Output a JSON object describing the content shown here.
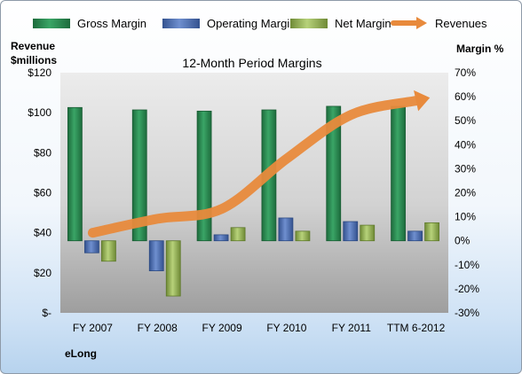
{
  "chart_data": {
    "type": "bar",
    "title": "12-Month Period Margins",
    "company": "eLong",
    "categories": [
      "FY 2007",
      "FY 2008",
      "FY 2009",
      "FY 2010",
      "FY 2011",
      "TTM 6-2012"
    ],
    "left_axis": {
      "label_line1": "Revenue",
      "label_line2": "$millions",
      "ylim": [
        0,
        120
      ],
      "ticks": [
        "$-",
        "$20",
        "$40",
        "$60",
        "$80",
        "$100",
        "$120"
      ],
      "tick_values": [
        0,
        20,
        40,
        60,
        80,
        100,
        120
      ]
    },
    "right_axis": {
      "label": "Margin %",
      "ylim": [
        -30,
        70
      ],
      "ticks": [
        "-30%",
        "-20%",
        "-10%",
        "0%",
        "10%",
        "20%",
        "30%",
        "40%",
        "50%",
        "60%",
        "70%"
      ],
      "tick_values": [
        -30,
        -20,
        -10,
        0,
        10,
        20,
        30,
        40,
        50,
        60,
        70
      ]
    },
    "series": [
      {
        "name": "Gross Margin",
        "type": "bar",
        "axis": "right",
        "color": "#2e8b57",
        "values": [
          55.5,
          54.5,
          54,
          54.5,
          56,
          56
        ]
      },
      {
        "name": "Operating Margin",
        "type": "bar",
        "axis": "right",
        "color": "#4f6fb0",
        "values": [
          -5,
          -12.5,
          2.5,
          9.5,
          8,
          4
        ]
      },
      {
        "name": "Net Margin",
        "type": "bar",
        "axis": "right",
        "color": "#9bbb59",
        "values": [
          -8.5,
          -23,
          5.5,
          4,
          6.5,
          7.5
        ]
      },
      {
        "name": "Revenues",
        "type": "line",
        "axis": "left",
        "color": "#e88a3c",
        "values": [
          40,
          47,
          52,
          77,
          99,
          106
        ]
      }
    ],
    "legend_position": "top"
  }
}
